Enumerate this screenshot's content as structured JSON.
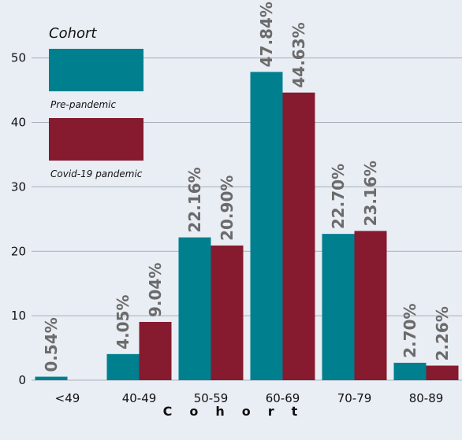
{
  "chart_data": {
    "type": "bar",
    "categories": [
      "<49",
      "40-49",
      "50-59",
      "60-69",
      "70-79",
      "80-89"
    ],
    "series": [
      {
        "name": "Pre-pandemic",
        "color": "#007f8f",
        "values": [
          0.54,
          4.05,
          22.16,
          47.84,
          22.7,
          2.7
        ],
        "labels": [
          "0.54%",
          "4.05%",
          "22.16%",
          "47.84%",
          "22.70%",
          "2.70%"
        ]
      },
      {
        "name": "Covid-19 pandemic",
        "color": "#861a2e",
        "values": [
          0.0,
          9.04,
          20.9,
          44.63,
          23.16,
          2.26
        ],
        "labels": [
          "",
          "9.04%",
          "20.90%",
          "44.63%",
          "23.16%",
          "2.26%"
        ]
      }
    ],
    "xlabel": "Cohort",
    "ylabel": "",
    "ylim": [
      0,
      59
    ],
    "yticks": [
      0,
      10,
      20,
      30,
      40,
      50
    ],
    "grid": true,
    "legend": {
      "title": "Cohort",
      "placement": "top-left"
    }
  }
}
